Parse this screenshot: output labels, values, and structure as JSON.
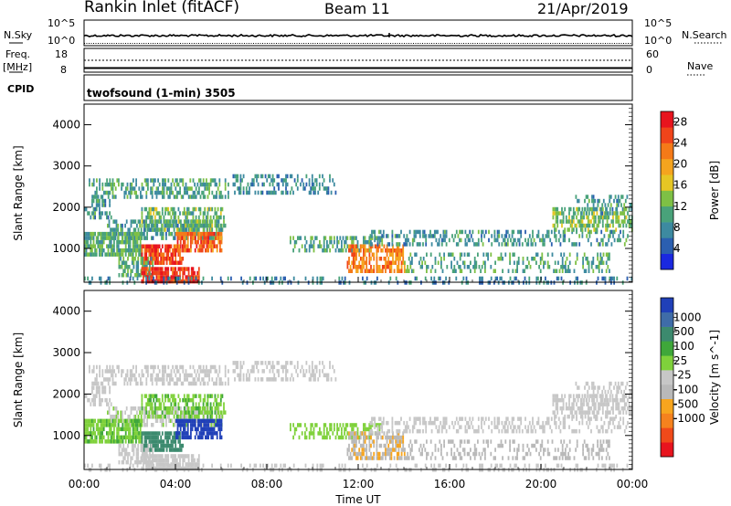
{
  "header": {
    "title": "Rankin Inlet (fitACF)",
    "beam": "Beam 11",
    "date": "21/Apr/2019"
  },
  "status_panels": {
    "nsky_label": "N.Sky",
    "nsky_ticks": [
      "10^5",
      "10^0"
    ],
    "nsearch_label": "N.Search",
    "nsearch_ticks": [
      "10^5",
      "10^0"
    ],
    "freq_label": "Freq.",
    "freq_unit": "[MHz]",
    "freq_ticks": [
      "18",
      "8"
    ],
    "nave_label": "Nave",
    "nave_ticks": [
      "60",
      "0"
    ],
    "cpid_label": "CPID",
    "cpid_text": "twofsound (1-min) 3505"
  },
  "colors": {
    "velocity": [
      "#e8141e",
      "#f04a1a",
      "#f5821e",
      "#f7a51e",
      "#b9b9b9",
      "#c7c7c7",
      "#7fd13b",
      "#3fa73a",
      "#3c8a6e",
      "#3f6ca8",
      "#2040b8"
    ],
    "power": [
      "#1a28e0",
      "#2b5fb0",
      "#3d8aa0",
      "#49a27a",
      "#7ec045",
      "#e6c624",
      "#f5a41e",
      "#f57a18",
      "#f0441a",
      "#e8141e"
    ]
  },
  "chart_data": [
    {
      "type": "heatmap",
      "name": "power",
      "ylabel": "Slant Range [km]",
      "xlabel": "",
      "x_ticks": [
        "00:00",
        "04:00",
        "08:00",
        "12:00",
        "16:00",
        "20:00",
        "00:00"
      ],
      "y_ticks": [
        1000,
        2000,
        3000,
        4000
      ],
      "ylim": [
        180,
        4500
      ],
      "xlim_hours": [
        0,
        24
      ],
      "colorbar": {
        "label": "Power [dB]",
        "ticks": [
          "4",
          "8",
          "12",
          "16",
          "20",
          "24",
          "28"
        ],
        "range": [
          0,
          30
        ]
      },
      "scatter_blobs": [
        {
          "t": [
            0.2,
            6.3
          ],
          "r": [
            2300,
            2700
          ],
          "v": 10,
          "d": 0.45
        },
        {
          "t": [
            0.0,
            1.2
          ],
          "r": [
            1800,
            2200
          ],
          "v": 9,
          "d": 0.5
        },
        {
          "t": [
            1.0,
            6.0
          ],
          "r": [
            1300,
            1700
          ],
          "v": 9,
          "d": 0.55
        },
        {
          "t": [
            2.5,
            6.2
          ],
          "r": [
            1500,
            2000
          ],
          "v": 12,
          "d": 0.5
        },
        {
          "t": [
            0.0,
            2.5
          ],
          "r": [
            850,
            1400
          ],
          "v": 11,
          "d": 0.8
        },
        {
          "t": [
            2.5,
            4.3
          ],
          "r": [
            700,
            1100
          ],
          "v": 26,
          "d": 0.85
        },
        {
          "t": [
            4.0,
            6.0
          ],
          "r": [
            950,
            1400
          ],
          "v": 24,
          "d": 0.8
        },
        {
          "t": [
            1.5,
            3.0
          ],
          "r": [
            350,
            800
          ],
          "v": 11,
          "d": 0.6
        },
        {
          "t": [
            2.5,
            5.0
          ],
          "r": [
            230,
            550
          ],
          "v": 27,
          "d": 0.85
        },
        {
          "t": [
            6.5,
            11.0
          ],
          "r": [
            2400,
            2800
          ],
          "v": 8,
          "d": 0.35
        },
        {
          "t": [
            9.0,
            13.0
          ],
          "r": [
            1000,
            1300
          ],
          "v": 10,
          "d": 0.45
        },
        {
          "t": [
            11.5,
            14.0
          ],
          "r": [
            500,
            1100
          ],
          "v": 22,
          "d": 0.6
        },
        {
          "t": [
            12.5,
            23.8
          ],
          "r": [
            1100,
            1450
          ],
          "v": 9,
          "d": 0.4
        },
        {
          "t": [
            14.0,
            23.0
          ],
          "r": [
            500,
            900
          ],
          "v": 10,
          "d": 0.3
        },
        {
          "t": [
            20.5,
            24.0
          ],
          "r": [
            1500,
            2000
          ],
          "v": 13,
          "d": 0.55
        },
        {
          "t": [
            21.5,
            24.0
          ],
          "r": [
            1900,
            2300
          ],
          "v": 9,
          "d": 0.35
        },
        {
          "t": [
            0.0,
            24.0
          ],
          "r": [
            200,
            320
          ],
          "v": 7,
          "d": 0.25
        }
      ]
    },
    {
      "type": "heatmap",
      "name": "velocity",
      "ylabel": "Slant Range [km]",
      "xlabel": "Time UT",
      "x_ticks": [
        "00:00",
        "04:00",
        "08:00",
        "12:00",
        "16:00",
        "20:00",
        "00:00"
      ],
      "y_ticks": [
        1000,
        2000,
        3000,
        4000
      ],
      "ylim": [
        180,
        4500
      ],
      "xlim_hours": [
        0,
        24
      ],
      "colorbar": {
        "label": "Velocity [m s^-1]",
        "ticks": [
          "1000",
          "500",
          "100",
          "25",
          "-25",
          "-100",
          "-500",
          "-1000"
        ],
        "range": [
          -1200,
          1200
        ]
      },
      "scatter_blobs": [
        {
          "t": [
            0.2,
            6.3
          ],
          "r": [
            2300,
            2700
          ],
          "v": 0,
          "d": 0.45
        },
        {
          "t": [
            0.0,
            1.2
          ],
          "r": [
            1800,
            2200
          ],
          "v": 10,
          "d": 0.5
        },
        {
          "t": [
            1.0,
            6.0
          ],
          "r": [
            1300,
            1700
          ],
          "v": 80,
          "d": 0.55
        },
        {
          "t": [
            2.5,
            6.2
          ],
          "r": [
            1500,
            2000
          ],
          "v": 300,
          "d": 0.5
        },
        {
          "t": [
            0.0,
            2.5
          ],
          "r": [
            850,
            1400
          ],
          "v": 300,
          "d": 0.8
        },
        {
          "t": [
            2.5,
            4.3
          ],
          "r": [
            700,
            1100
          ],
          "v": 700,
          "d": 0.85
        },
        {
          "t": [
            4.0,
            6.0
          ],
          "r": [
            950,
            1400
          ],
          "v": 1100,
          "d": 0.8
        },
        {
          "t": [
            1.5,
            3.0
          ],
          "r": [
            350,
            800
          ],
          "v": 0,
          "d": 0.6
        },
        {
          "t": [
            2.5,
            5.0
          ],
          "r": [
            230,
            550
          ],
          "v": -20,
          "d": 0.85
        },
        {
          "t": [
            6.5,
            11.0
          ],
          "r": [
            2400,
            2800
          ],
          "v": 5,
          "d": 0.35
        },
        {
          "t": [
            9.0,
            13.0
          ],
          "r": [
            1000,
            1300
          ],
          "v": 200,
          "d": 0.45
        },
        {
          "t": [
            11.5,
            14.0
          ],
          "r": [
            500,
            1100
          ],
          "v": -300,
          "d": 0.6
        },
        {
          "t": [
            12.5,
            23.8
          ],
          "r": [
            1100,
            1450
          ],
          "v": -5,
          "d": 0.4
        },
        {
          "t": [
            14.0,
            23.0
          ],
          "r": [
            500,
            900
          ],
          "v": -200,
          "d": 0.3
        },
        {
          "t": [
            20.5,
            24.0
          ],
          "r": [
            1500,
            2000
          ],
          "v": 0,
          "d": 0.55
        },
        {
          "t": [
            21.5,
            24.0
          ],
          "r": [
            1900,
            2300
          ],
          "v": 15,
          "d": 0.35
        },
        {
          "t": [
            0.0,
            24.0
          ],
          "r": [
            200,
            320
          ],
          "v": 30,
          "d": 0.25
        }
      ]
    }
  ]
}
